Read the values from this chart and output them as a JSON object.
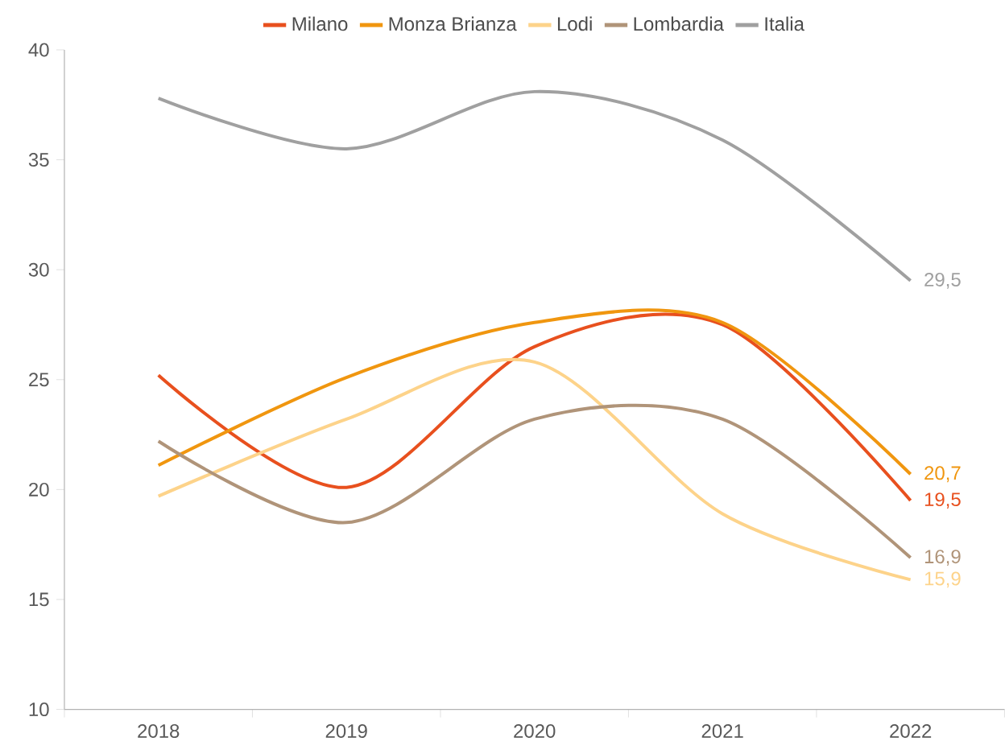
{
  "chart_data": {
    "type": "line",
    "categories": [
      "2018",
      "2019",
      "2020",
      "2021",
      "2022"
    ],
    "ylim": [
      10,
      40
    ],
    "yticks": [
      10,
      15,
      20,
      25,
      30,
      35,
      40
    ],
    "grid": false,
    "legend": "top",
    "marker": "none",
    "line_style": "solid",
    "series": [
      {
        "name": "Milano",
        "color": "#e8501e",
        "values": [
          25.2,
          20.1,
          26.5,
          27.5,
          19.5
        ],
        "value_labels": [
          null,
          null,
          null,
          null,
          "19,5"
        ]
      },
      {
        "name": "Monza Brianza",
        "color": "#f0960f",
        "values": [
          21.1,
          25.1,
          27.6,
          27.6,
          20.7
        ],
        "value_labels": [
          null,
          null,
          null,
          null,
          "20,7"
        ]
      },
      {
        "name": "Lodi",
        "color": "#fdd38a",
        "values": [
          19.7,
          23.2,
          25.8,
          18.9,
          15.9
        ],
        "value_labels": [
          null,
          null,
          null,
          null,
          "15,9"
        ]
      },
      {
        "name": "Lombardia",
        "color": "#b09479",
        "values": [
          22.2,
          18.5,
          23.2,
          23.2,
          16.9
        ],
        "value_labels": [
          null,
          null,
          null,
          null,
          "16,9"
        ]
      },
      {
        "name": "Italia",
        "color": "#a0a0a0",
        "values": [
          37.8,
          35.5,
          38.1,
          35.9,
          29.5
        ],
        "value_labels": [
          null,
          null,
          null,
          null,
          "29,5"
        ]
      }
    ]
  }
}
